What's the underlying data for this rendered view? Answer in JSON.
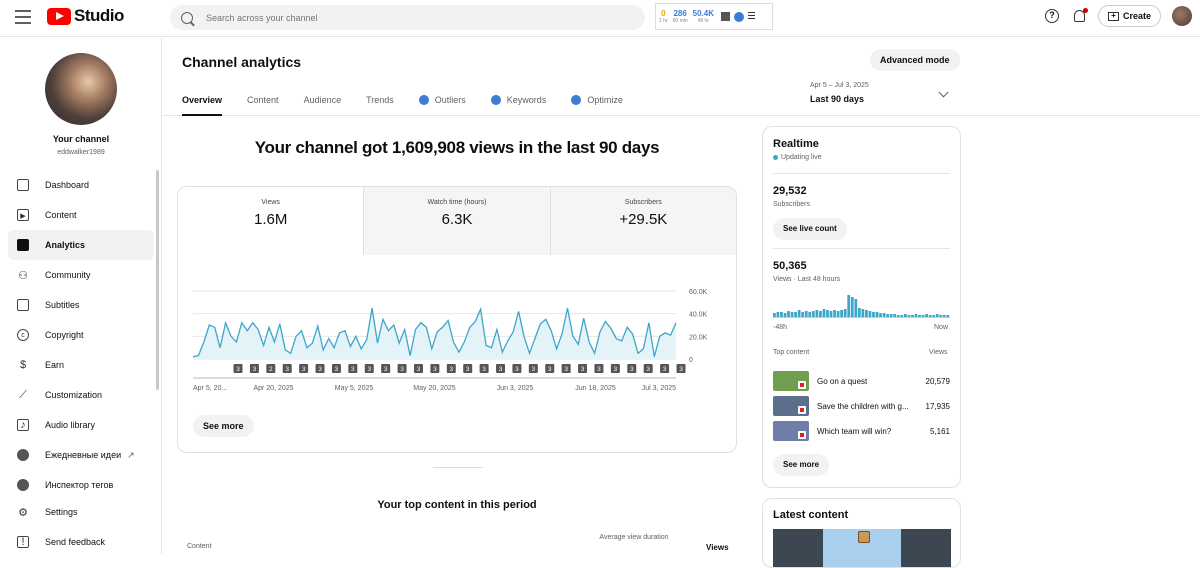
{
  "header": {
    "app_name": "Studio",
    "search_placeholder": "Search across your channel",
    "ext_stats": [
      {
        "value": "0",
        "label": "1 hr",
        "color": "#e8a317"
      },
      {
        "value": "286",
        "label": "60 min",
        "color": "#3d7cd4"
      },
      {
        "value": "50.4K",
        "label": "48 hr",
        "color": "#3d7cd4"
      }
    ],
    "create_label": "Create"
  },
  "sidebar": {
    "channel_title": "Your channel",
    "channel_handle": "eddwalker1989",
    "items": [
      {
        "label": "Dashboard",
        "icon": "dashboard-icon"
      },
      {
        "label": "Content",
        "icon": "content-icon"
      },
      {
        "label": "Analytics",
        "icon": "analytics-icon",
        "active": true
      },
      {
        "label": "Community",
        "icon": "community-icon"
      },
      {
        "label": "Subtitles",
        "icon": "subtitles-icon"
      },
      {
        "label": "Copyright",
        "icon": "copyright-icon"
      },
      {
        "label": "Earn",
        "icon": "dollar-icon"
      },
      {
        "label": "Customization",
        "icon": "magic-wand-icon"
      },
      {
        "label": "Audio library",
        "icon": "audio-library-icon"
      },
      {
        "label": "Ежедневные идеи",
        "icon": "extension-icon"
      },
      {
        "label": "Инспектор тегов",
        "icon": "extension-icon"
      }
    ],
    "bottom_items": [
      {
        "label": "Settings",
        "icon": "settings-icon"
      },
      {
        "label": "Send feedback",
        "icon": "feedback-icon"
      }
    ]
  },
  "main": {
    "title": "Channel analytics",
    "advanced_mode_label": "Advanced mode",
    "tabs": [
      {
        "label": "Overview",
        "active": true,
        "ext": false
      },
      {
        "label": "Content",
        "active": false,
        "ext": false
      },
      {
        "label": "Audience",
        "active": false,
        "ext": false
      },
      {
        "label": "Trends",
        "active": false,
        "ext": false
      },
      {
        "label": "Outliers",
        "active": false,
        "ext": true
      },
      {
        "label": "Keywords",
        "active": false,
        "ext": true
      },
      {
        "label": "Optimize",
        "active": false,
        "ext": true
      }
    ],
    "date_range": "Apr 5 – Jul 3, 2025",
    "date_label": "Last 90 days",
    "headline": "Your channel got 1,609,908 views in the last 90 days",
    "metrics": [
      {
        "label": "Views",
        "value": "1.6M"
      },
      {
        "label": "Watch time (hours)",
        "value": "6.3K"
      },
      {
        "label": "Subscribers",
        "value": "+29.5K"
      }
    ],
    "see_more_label": "See more",
    "top_content_title": "Your top content in this period",
    "table_headers": {
      "content": "Content",
      "avd": "Average view duration",
      "views": "Views"
    }
  },
  "chart_data": {
    "type": "area",
    "x_labels": [
      "Apr 5, 20...",
      "Apr 20, 2025",
      "May 5, 2025",
      "May 20, 2025",
      "Jun 3, 2025",
      "Jun 18, 2025",
      "Jul 3, 2025"
    ],
    "y_ticks": [
      "60.0K",
      "40.0K",
      "20.0K",
      "0"
    ],
    "ylim": [
      0,
      60000
    ],
    "values": [
      2000,
      3000,
      15000,
      30000,
      28000,
      10000,
      32000,
      20000,
      15000,
      32000,
      25000,
      32000,
      26000,
      12000,
      28000,
      15000,
      31000,
      8000,
      5000,
      20000,
      25000,
      10000,
      14000,
      29000,
      8000,
      18000,
      10000,
      23000,
      25000,
      11000,
      20000,
      9000,
      17000,
      45000,
      14000,
      35000,
      25000,
      30000,
      14000,
      26000,
      3000,
      26000,
      32000,
      28000,
      9000,
      24000,
      28000,
      34000,
      15000,
      6000,
      15000,
      28000,
      33000,
      44000,
      12000,
      10000,
      26000,
      6000,
      16000,
      24000,
      42000,
      20000,
      5000,
      18000,
      31000,
      35000,
      25000,
      9000,
      22000,
      45000,
      20000,
      13000,
      36000,
      15000,
      5000,
      24000,
      33000,
      27000,
      18000,
      16000,
      28000,
      22000,
      5000,
      9000,
      32000,
      2000,
      20000,
      23000,
      21000,
      32000
    ],
    "markers": [
      "3",
      "3",
      "2",
      "3",
      "3",
      "3",
      "3",
      "3",
      "3",
      "3",
      "3",
      "3",
      "3",
      "3",
      "3",
      "3",
      "3",
      "3",
      "3",
      "3",
      "3",
      "3",
      "3",
      "3",
      "3",
      "3",
      "3",
      "3"
    ],
    "grid": true,
    "color": "#3ea6c8"
  },
  "realtime": {
    "title": "Realtime",
    "updating": "Updating live",
    "subs_value": "29,532",
    "subs_label": "Subscribers",
    "live_count_label": "See live count",
    "views_value": "50,365",
    "views_label": "Views · Last 48 hours",
    "axis_left": "-48h",
    "axis_right": "Now",
    "bars": [
      4,
      5,
      5,
      4,
      6,
      5,
      5,
      7,
      5,
      6,
      5,
      6,
      7,
      6,
      8,
      7,
      6,
      7,
      6,
      7,
      8,
      22,
      20,
      18,
      9,
      8,
      7,
      6,
      5,
      5,
      4,
      4,
      3,
      3,
      3,
      2,
      2,
      3,
      2,
      2,
      3,
      2,
      2,
      3,
      2,
      2,
      3,
      2,
      2,
      2
    ],
    "top_content_label": "Top content",
    "views_col_label": "Views",
    "items": [
      {
        "title": "Go on a quest",
        "views": "20,579",
        "color": "#6f9f4e"
      },
      {
        "title": "Save the children with g...",
        "views": "17,935",
        "color": "#5b6f8c"
      },
      {
        "title": "Which team will win?",
        "views": "5,161",
        "color": "#6f7ea8"
      }
    ],
    "see_more_label": "See more"
  },
  "latest": {
    "title": "Latest content"
  }
}
